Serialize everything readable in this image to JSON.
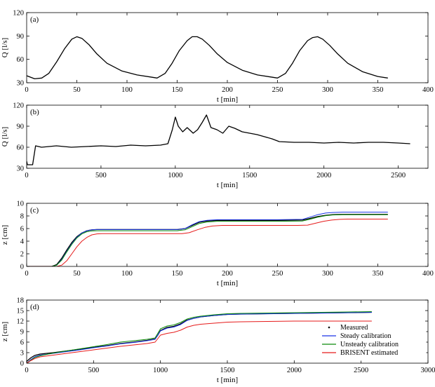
{
  "chart_data": [
    {
      "panel": "(a)",
      "type": "line",
      "xlabel": "t [min]",
      "ylabel": "Q [l/s]",
      "xlim": [
        0,
        400
      ],
      "ylim": [
        30,
        120
      ],
      "xticks": [
        0,
        50,
        100,
        150,
        200,
        250,
        300,
        350,
        400
      ],
      "yticks": [
        30,
        60,
        90,
        120
      ],
      "series": [
        {
          "color": "#000000",
          "x": [
            0,
            8,
            15,
            22,
            30,
            38,
            45,
            50,
            55,
            62,
            70,
            80,
            95,
            110,
            125,
            130,
            138,
            145,
            152,
            160,
            165,
            170,
            175,
            182,
            190,
            200,
            215,
            230,
            245,
            250,
            258,
            265,
            272,
            280,
            285,
            290,
            295,
            302,
            310,
            320,
            335,
            350,
            360
          ],
          "y": [
            39,
            35,
            36,
            42,
            57,
            74,
            86,
            89,
            87,
            79,
            67,
            55,
            45,
            40,
            37,
            36,
            42,
            55,
            71,
            84,
            89,
            89,
            86,
            78,
            67,
            56,
            46,
            40,
            37,
            36,
            42,
            55,
            71,
            84,
            88,
            89,
            86,
            78,
            67,
            55,
            44,
            38,
            36
          ]
        }
      ]
    },
    {
      "panel": "(b)",
      "type": "line",
      "xlabel": "t [min]",
      "ylabel": "Q [l/s]",
      "xlim": [
        0,
        2700
      ],
      "ylim": [
        30,
        120
      ],
      "xticks": [
        0,
        500,
        1000,
        1500,
        2000,
        2500
      ],
      "yticks": [
        30,
        60,
        90,
        120
      ],
      "series": [
        {
          "color": "#000000",
          "x": [
            0,
            5,
            40,
            60,
            100,
            200,
            300,
            400,
            500,
            600,
            700,
            800,
            900,
            950,
            980,
            1000,
            1020,
            1050,
            1080,
            1120,
            1150,
            1180,
            1210,
            1240,
            1280,
            1320,
            1360,
            1400,
            1450,
            1500,
            1550,
            1600,
            1650,
            1700,
            1800,
            1900,
            2000,
            2100,
            2200,
            2300,
            2400,
            2500,
            2580
          ],
          "y": [
            40,
            35,
            35,
            62,
            60,
            62,
            60,
            61,
            62,
            61,
            63,
            62,
            63,
            65,
            85,
            103,
            90,
            82,
            88,
            80,
            85,
            95,
            106,
            88,
            85,
            80,
            90,
            87,
            82,
            80,
            78,
            75,
            72,
            68,
            67,
            67,
            66,
            67,
            66,
            67,
            67,
            66,
            65
          ]
        }
      ]
    },
    {
      "panel": "(c)",
      "type": "line",
      "xlabel": "t [min]",
      "ylabel": "z [cm]",
      "xlim": [
        0,
        400
      ],
      "ylim": [
        0,
        10
      ],
      "xticks": [
        0,
        50,
        100,
        150,
        200,
        250,
        300,
        350,
        400
      ],
      "yticks": [
        0,
        2,
        4,
        6,
        8,
        10
      ],
      "series": [
        {
          "name": "Measured",
          "color": "#000000",
          "x": [
            0,
            25,
            30,
            35,
            40,
            45,
            50,
            55,
            60,
            65,
            70,
            100,
            150,
            158,
            165,
            172,
            180,
            190,
            200,
            250,
            275,
            282,
            290,
            298,
            305,
            315,
            360
          ],
          "y": [
            0,
            0,
            0.3,
            1.3,
            2.6,
            3.8,
            4.7,
            5.3,
            5.65,
            5.8,
            5.85,
            5.85,
            5.85,
            6.0,
            6.5,
            7.0,
            7.2,
            7.3,
            7.3,
            7.3,
            7.35,
            7.6,
            7.9,
            8.1,
            8.2,
            8.25,
            8.25
          ]
        },
        {
          "name": "Steady calibration",
          "color": "#1a35e6",
          "x": [
            0,
            25,
            30,
            35,
            40,
            45,
            50,
            55,
            60,
            65,
            70,
            100,
            150,
            158,
            165,
            172,
            180,
            190,
            200,
            250,
            275,
            282,
            290,
            298,
            305,
            315,
            360
          ],
          "y": [
            0,
            0,
            0.2,
            1.1,
            2.4,
            3.6,
            4.6,
            5.3,
            5.65,
            5.8,
            5.85,
            5.85,
            5.85,
            6.0,
            6.6,
            7.1,
            7.3,
            7.4,
            7.4,
            7.4,
            7.45,
            7.8,
            8.2,
            8.45,
            8.55,
            8.6,
            8.6
          ]
        },
        {
          "name": "Unsteady calibration",
          "color": "#0a8a0a",
          "x": [
            0,
            25,
            30,
            35,
            40,
            45,
            50,
            55,
            60,
            65,
            70,
            100,
            150,
            158,
            165,
            172,
            180,
            190,
            200,
            250,
            275,
            282,
            290,
            298,
            305,
            315,
            360
          ],
          "y": [
            0,
            0,
            0.2,
            1.0,
            2.3,
            3.5,
            4.5,
            5.15,
            5.5,
            5.62,
            5.65,
            5.65,
            5.65,
            5.8,
            6.3,
            6.8,
            7.05,
            7.15,
            7.15,
            7.15,
            7.2,
            7.45,
            7.8,
            8.05,
            8.15,
            8.2,
            8.2
          ]
        },
        {
          "name": "BRISENT estimated",
          "color": "#e61a1a",
          "x": [
            0,
            30,
            35,
            40,
            45,
            50,
            55,
            60,
            65,
            70,
            75,
            100,
            155,
            162,
            170,
            178,
            185,
            195,
            205,
            270,
            280,
            288,
            296,
            304,
            312,
            320,
            360
          ],
          "y": [
            0,
            0,
            0.2,
            0.9,
            2.0,
            3.1,
            4.0,
            4.6,
            5.0,
            5.15,
            5.2,
            5.2,
            5.2,
            5.35,
            5.8,
            6.2,
            6.4,
            6.5,
            6.5,
            6.5,
            6.55,
            6.85,
            7.15,
            7.35,
            7.45,
            7.5,
            7.5
          ]
        }
      ]
    },
    {
      "panel": "(d)",
      "type": "line",
      "xlabel": "t [min]",
      "ylabel": "z [cm]",
      "xlim": [
        0,
        3000
      ],
      "ylim": [
        0,
        18
      ],
      "xticks": [
        0,
        500,
        1000,
        1500,
        2000,
        2500,
        3000
      ],
      "yticks": [
        0,
        3,
        6,
        9,
        12,
        15,
        18
      ],
      "legend": "bottom-right",
      "series": [
        {
          "name": "Measured",
          "color": "#000000",
          "x": [
            0,
            30,
            60,
            100,
            200,
            300,
            400,
            500,
            600,
            700,
            800,
            900,
            960,
            980,
            1000,
            1050,
            1100,
            1150,
            1200,
            1250,
            1300,
            1400,
            1500,
            1600,
            1800,
            2000,
            2200,
            2400,
            2580
          ],
          "y": [
            0.5,
            1.5,
            2.2,
            2.6,
            3.0,
            3.5,
            4.0,
            4.5,
            5.0,
            5.6,
            6.0,
            6.5,
            6.9,
            8.0,
            9.3,
            10.2,
            10.5,
            11.2,
            12.3,
            12.8,
            13.2,
            13.6,
            13.9,
            14.0,
            14.1,
            14.2,
            14.3,
            14.4,
            14.5
          ]
        },
        {
          "name": "Steady calibration",
          "color": "#1a35e6",
          "x": [
            0,
            30,
            60,
            100,
            200,
            300,
            400,
            500,
            600,
            700,
            800,
            900,
            960,
            980,
            1000,
            1050,
            1100,
            1150,
            1200,
            1250,
            1300,
            1400,
            1500,
            1600,
            1800,
            2000,
            2200,
            2400,
            2580
          ],
          "y": [
            0,
            1.0,
            1.8,
            2.3,
            2.8,
            3.3,
            3.8,
            4.4,
            4.9,
            5.5,
            5.9,
            6.4,
            6.8,
            8.0,
            9.2,
            10.0,
            10.3,
            11.0,
            12.2,
            12.8,
            13.2,
            13.6,
            13.9,
            14.0,
            14.1,
            14.2,
            14.3,
            14.4,
            14.5
          ]
        },
        {
          "name": "Unsteady calibration",
          "color": "#0a8a0a",
          "x": [
            0,
            30,
            60,
            100,
            200,
            300,
            400,
            500,
            600,
            700,
            800,
            900,
            960,
            980,
            1000,
            1050,
            1100,
            1150,
            1200,
            1250,
            1300,
            1400,
            1500,
            1600,
            1800,
            2000,
            2200,
            2400,
            2580
          ],
          "y": [
            0,
            0.8,
            1.6,
            2.1,
            2.9,
            3.5,
            4.1,
            4.7,
            5.3,
            6.0,
            6.4,
            6.8,
            7.2,
            8.5,
            9.8,
            10.6,
            10.9,
            11.6,
            12.6,
            13.1,
            13.4,
            13.8,
            14.1,
            14.2,
            14.3,
            14.4,
            14.5,
            14.6,
            14.7
          ]
        },
        {
          "name": "BRISENT estimated",
          "color": "#e61a1a",
          "x": [
            0,
            30,
            60,
            100,
            200,
            300,
            400,
            500,
            600,
            700,
            800,
            900,
            960,
            980,
            1000,
            1050,
            1100,
            1150,
            1200,
            1250,
            1300,
            1400,
            1500,
            1600,
            1800,
            2000,
            2200,
            2400,
            2580
          ],
          "y": [
            0,
            0.7,
            1.3,
            1.8,
            2.3,
            2.8,
            3.3,
            3.8,
            4.3,
            4.8,
            5.2,
            5.6,
            6.0,
            7.0,
            8.0,
            8.5,
            8.8,
            9.4,
            10.3,
            10.8,
            11.1,
            11.4,
            11.7,
            11.8,
            11.9,
            12.0,
            12.0,
            12.0,
            12.0
          ]
        }
      ]
    }
  ]
}
